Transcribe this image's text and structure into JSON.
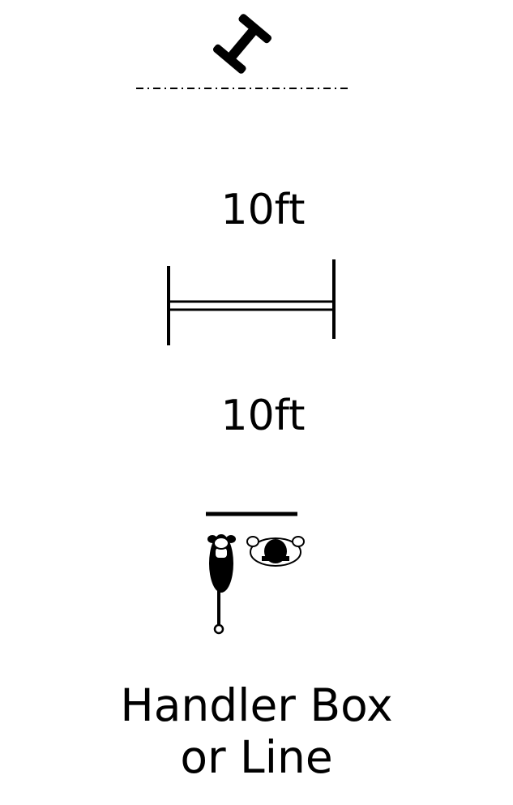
{
  "diagram": {
    "distance_top": "10ft",
    "distance_bottom": "10ft",
    "caption_line1": "Handler Box",
    "caption_line2": "or Line"
  },
  "icons": {
    "top_marker": "i-beam-marker-icon",
    "jump": "bar-jump-icon",
    "handler_line": "handler-line-icon",
    "dog": "dog-topview-icon",
    "handler": "handler-topview-icon"
  },
  "colors": {
    "ink": "#000000",
    "background": "#ffffff"
  }
}
